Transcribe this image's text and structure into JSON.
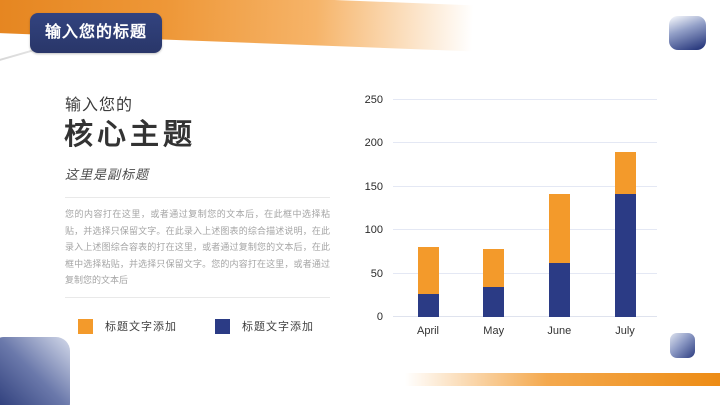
{
  "slide": {
    "title_banner": "输入您的标题",
    "heading_line1": "输入您的",
    "heading_line2": "核心主题",
    "subtitle": "这里是副标题",
    "body_text": "您的内容打在这里，或者通过复制您的文本后，在此框中选择粘贴，并选择只保留文字。在此录入上述图表的综合描述说明，在此录入上述图综合容表的打在这里，或者通过复制您的文本后，在此框中选择粘贴，并选择只保留文字。您的内容打在这里，或者通过复制您的文本后",
    "legend": [
      {
        "label": "标题文字添加",
        "color": "#F39A2B"
      },
      {
        "label": "标题文字添加",
        "color": "#2B3B85"
      }
    ]
  },
  "colors": {
    "accent_orange": "#F39A2B",
    "accent_navy": "#2B3B85",
    "band_orange_start": "#E4831D",
    "gridline": "#e4e8f4",
    "body_text_gray": "#a5a5a5"
  },
  "chart_data": {
    "type": "bar",
    "stacked": true,
    "categories": [
      "April",
      "May",
      "June",
      "July"
    ],
    "series": [
      {
        "name": "标题文字添加",
        "color": "#2B3B85",
        "values": [
          27,
          35,
          62,
          142
        ]
      },
      {
        "name": "标题文字添加",
        "color": "#F39A2B",
        "values": [
          54,
          43,
          80,
          48
        ]
      }
    ],
    "totals": [
      81,
      78,
      142,
      190
    ],
    "title": "",
    "xlabel": "",
    "ylabel": "",
    "ylim": [
      0,
      250
    ],
    "yticks": [
      0,
      50,
      100,
      150,
      200,
      250
    ],
    "grid": true,
    "legend_position": "bottom-left"
  }
}
